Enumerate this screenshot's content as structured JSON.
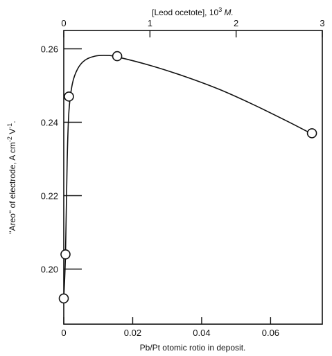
{
  "chart_data": {
    "type": "scatter",
    "title": "",
    "xlabel": "Pb/Pt otomic rotio in deposit.",
    "ylabel": "\"Areo\" of electrode, A cm-2 V-1.",
    "ylabel_parts": {
      "main": "\"Areo\" of electrode, A cm",
      "exp1": "-2",
      "mid": " V",
      "exp2": "-1",
      "end": "."
    },
    "x2label": "[Leod ocetote], 10³ M.",
    "x2label_parts": {
      "main": "[Leod ocetote], 10",
      "exp": "3",
      "unit": " M."
    },
    "xlim": [
      0,
      0.075
    ],
    "ylim": [
      0.185,
      0.265
    ],
    "x2lim": [
      0,
      3
    ],
    "x_ticks": [
      0,
      0.02,
      0.04,
      0.06
    ],
    "x_tick_labels": [
      "0",
      "0.02",
      "0.04",
      "0.06"
    ],
    "y_ticks": [
      0.2,
      0.22,
      0.24,
      0.26
    ],
    "y_tick_labels": [
      "0.20",
      "0.22",
      "0.24",
      "0.26"
    ],
    "x2_ticks": [
      0,
      1,
      2,
      3
    ],
    "x2_tick_labels": [
      "0",
      "1",
      "2",
      "3"
    ],
    "grid": false,
    "series": [
      {
        "points": [
          {
            "x": 0.0,
            "y": 0.192
          },
          {
            "x": 0.0005,
            "y": 0.204
          },
          {
            "x": 0.0015,
            "y": 0.247
          },
          {
            "x": 0.0155,
            "y": 0.258
          },
          {
            "x": 0.072,
            "y": 0.237
          }
        ]
      }
    ],
    "fit_curve": [
      {
        "x": 0.0,
        "y": 0.192
      },
      {
        "x": 0.0005,
        "y": 0.204
      },
      {
        "x": 0.001,
        "y": 0.23
      },
      {
        "x": 0.0015,
        "y": 0.243
      },
      {
        "x": 0.0025,
        "y": 0.2505
      },
      {
        "x": 0.004,
        "y": 0.2545
      },
      {
        "x": 0.006,
        "y": 0.2568
      },
      {
        "x": 0.009,
        "y": 0.258
      },
      {
        "x": 0.0125,
        "y": 0.2582
      },
      {
        "x": 0.0155,
        "y": 0.2578
      },
      {
        "x": 0.025,
        "y": 0.2555
      },
      {
        "x": 0.035,
        "y": 0.2525
      },
      {
        "x": 0.045,
        "y": 0.249
      },
      {
        "x": 0.055,
        "y": 0.2448
      },
      {
        "x": 0.065,
        "y": 0.2402
      },
      {
        "x": 0.072,
        "y": 0.2368
      }
    ]
  }
}
